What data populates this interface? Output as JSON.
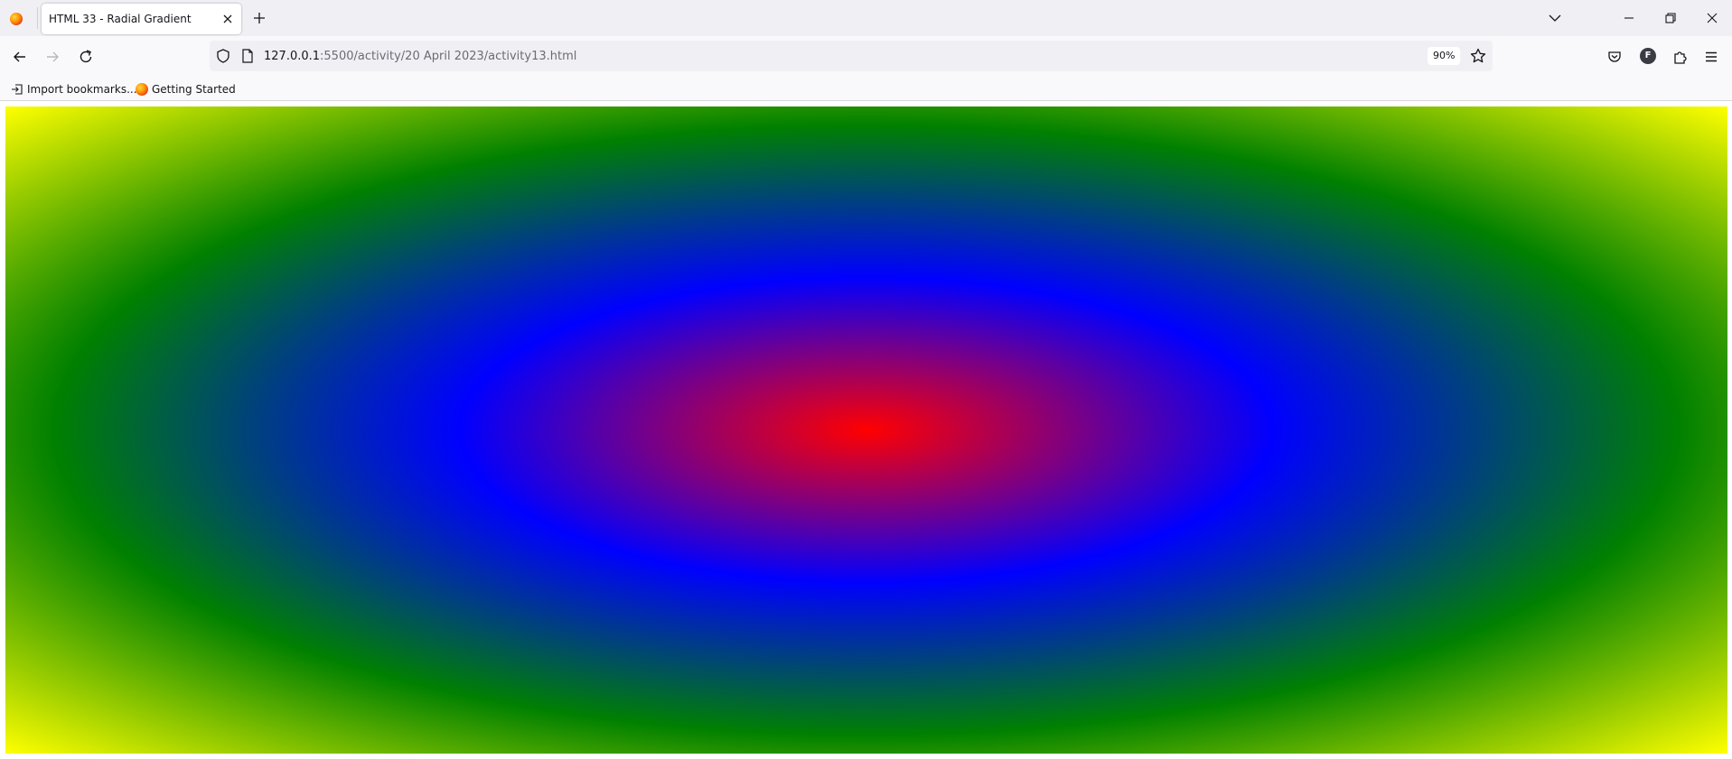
{
  "browser": {
    "tab": {
      "title": "HTML 33 - Radial Gradient"
    },
    "url": {
      "host": "127.0.0.1",
      "path": ":5500/activity/20 April 2023/activity13.html"
    },
    "zoom": "90%",
    "account_initial": "F"
  },
  "bookmarks": {
    "items": [
      {
        "label": "Import bookmarks..."
      },
      {
        "label": "Getting Started"
      }
    ]
  },
  "page": {
    "gradient": {
      "shape": "ellipse",
      "colors": [
        "#ff0000",
        "#0000ff",
        "#008000",
        "#ffff00"
      ]
    }
  }
}
